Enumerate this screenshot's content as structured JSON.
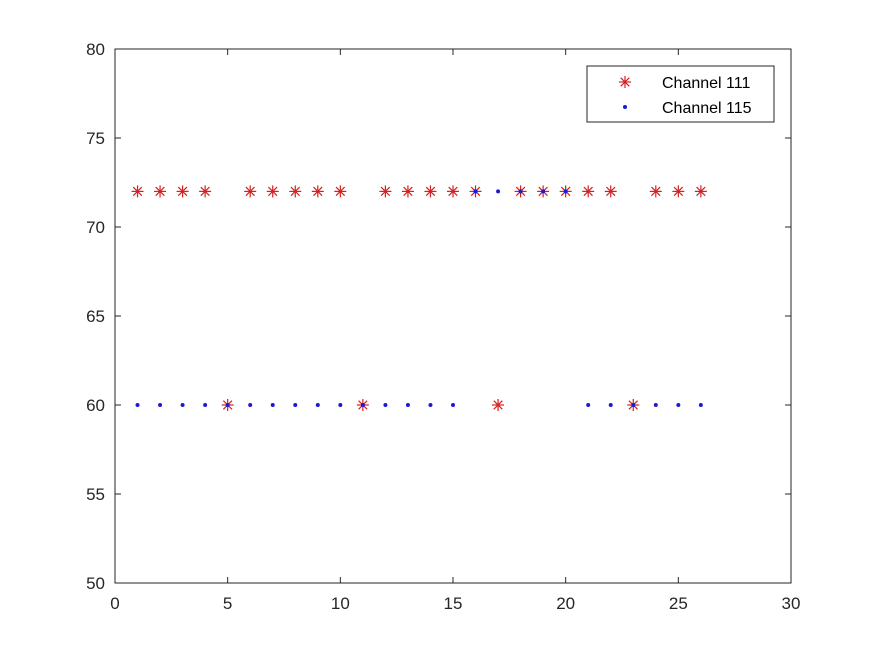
{
  "chart_data": {
    "type": "scatter",
    "title": "",
    "xlabel": "",
    "ylabel": "",
    "xlim": [
      0,
      30
    ],
    "ylim": [
      50,
      80
    ],
    "xticks": [
      0,
      5,
      10,
      15,
      20,
      25,
      30
    ],
    "yticks": [
      50,
      55,
      60,
      65,
      70,
      75,
      80
    ],
    "grid": false,
    "legend_position": "top-right",
    "series": [
      {
        "name": "Channel 111",
        "marker": "asterisk",
        "color": "#d62020",
        "x": [
          1,
          2,
          3,
          4,
          5,
          6,
          7,
          8,
          9,
          10,
          11,
          12,
          13,
          14,
          15,
          16,
          17,
          18,
          19,
          20,
          21,
          22,
          23,
          24,
          25,
          26
        ],
        "y": [
          72,
          72,
          72,
          72,
          60,
          72,
          72,
          72,
          72,
          72,
          60,
          72,
          72,
          72,
          72,
          72,
          60,
          72,
          72,
          72,
          72,
          72,
          60,
          72,
          72,
          72
        ]
      },
      {
        "name": "Channel 115",
        "marker": "dot",
        "color": "#1a1adb",
        "x": [
          1,
          2,
          3,
          4,
          5,
          6,
          7,
          8,
          9,
          10,
          11,
          12,
          13,
          14,
          15,
          16,
          17,
          18,
          19,
          20,
          21,
          22,
          23,
          24,
          25,
          26
        ],
        "y": [
          60,
          60,
          60,
          60,
          60,
          60,
          60,
          60,
          60,
          60,
          60,
          60,
          60,
          60,
          60,
          72,
          72,
          72,
          72,
          72,
          60,
          60,
          60,
          60,
          60,
          60
        ]
      }
    ]
  }
}
